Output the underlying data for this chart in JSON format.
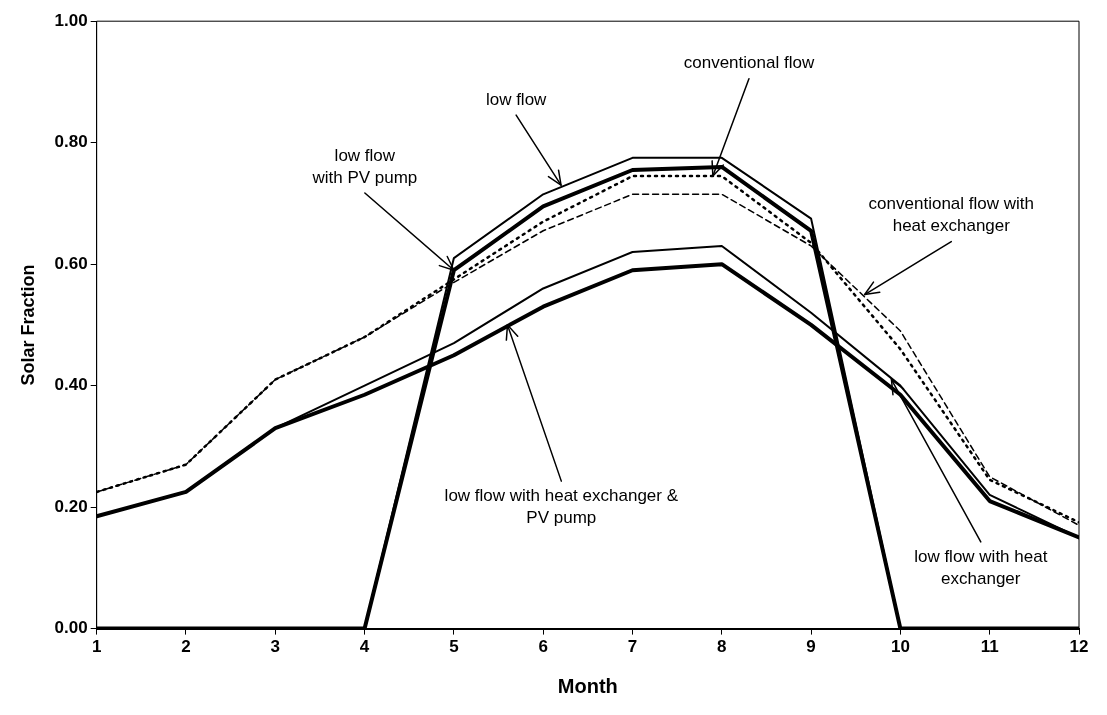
{
  "chart_data": {
    "type": "line",
    "xlabel": "Month",
    "ylabel": "Solar Fraction",
    "x": [
      1,
      2,
      3,
      4,
      5,
      6,
      7,
      8,
      9,
      10,
      11,
      12
    ],
    "xlim": [
      1,
      12
    ],
    "xticks": [
      1,
      2,
      3,
      4,
      5,
      6,
      7,
      8,
      9,
      10,
      11,
      12
    ],
    "ylim": [
      0,
      1
    ],
    "yticks": [
      {
        "value": 0,
        "label": "0.00"
      },
      {
        "value": 0.2,
        "label": "0.20"
      },
      {
        "value": 0.4,
        "label": "0.40"
      },
      {
        "value": 0.6,
        "label": "0.60"
      },
      {
        "value": 0.8,
        "label": "0.80"
      },
      {
        "value": 1,
        "label": "1.00"
      }
    ],
    "grid": false,
    "legend": false,
    "marker": "none",
    "series": [
      {
        "color": "#000000",
        "line_style": "dashed",
        "values": [
          0.225,
          0.27,
          0.41,
          0.48,
          0.57,
          0.655,
          0.715,
          0.715,
          0.63,
          0.49,
          0.25,
          0.17
        ]
      },
      {
        "color": "#000000",
        "line_style": "dotted",
        "values": [
          0.225,
          0.27,
          0.41,
          0.48,
          0.575,
          0.67,
          0.745,
          0.745,
          0.635,
          0.46,
          0.245,
          0.175
        ]
      },
      {
        "color": "#000000",
        "line_style": "solid",
        "values": [
          0.185,
          0.225,
          0.33,
          0.4,
          0.47,
          0.56,
          0.62,
          0.63,
          0.52,
          0.4,
          0.22,
          0.15
        ]
      },
      {
        "color": "#000000",
        "line_style": "solid",
        "values": [
          0.185,
          0.225,
          0.33,
          0.385,
          0.45,
          0.53,
          0.59,
          0.6,
          0.5,
          0.385,
          0.21,
          0.15
        ]
      },
      {
        "color": "#000000",
        "line_style": "solid",
        "values": [
          null,
          null,
          null,
          0,
          0.61,
          0.715,
          0.775,
          0.775,
          0.675,
          0,
          null,
          null
        ]
      },
      {
        "color": "#000000",
        "line_style": "solid",
        "values": [
          0,
          0,
          0,
          0,
          0.59,
          0.695,
          0.755,
          0.76,
          0.655,
          0,
          0,
          0
        ]
      }
    ],
    "annotations": [
      {
        "text": "low flow\nwith PV pump",
        "x": 5,
        "y": 0.59
      },
      {
        "text": "low flow",
        "x": 6.2,
        "y": 0.73
      },
      {
        "text": "conventional flow",
        "x": 7.9,
        "y": 0.745
      },
      {
        "text": "conventional flow with\nheat exchanger",
        "x": 9.6,
        "y": 0.55
      },
      {
        "text": "low flow with heat exchanger &\nPV pump",
        "x": 5.6,
        "y": 0.5
      },
      {
        "text": "low flow with heat\nexchanger",
        "x": 9.9,
        "y": 0.41
      }
    ]
  }
}
